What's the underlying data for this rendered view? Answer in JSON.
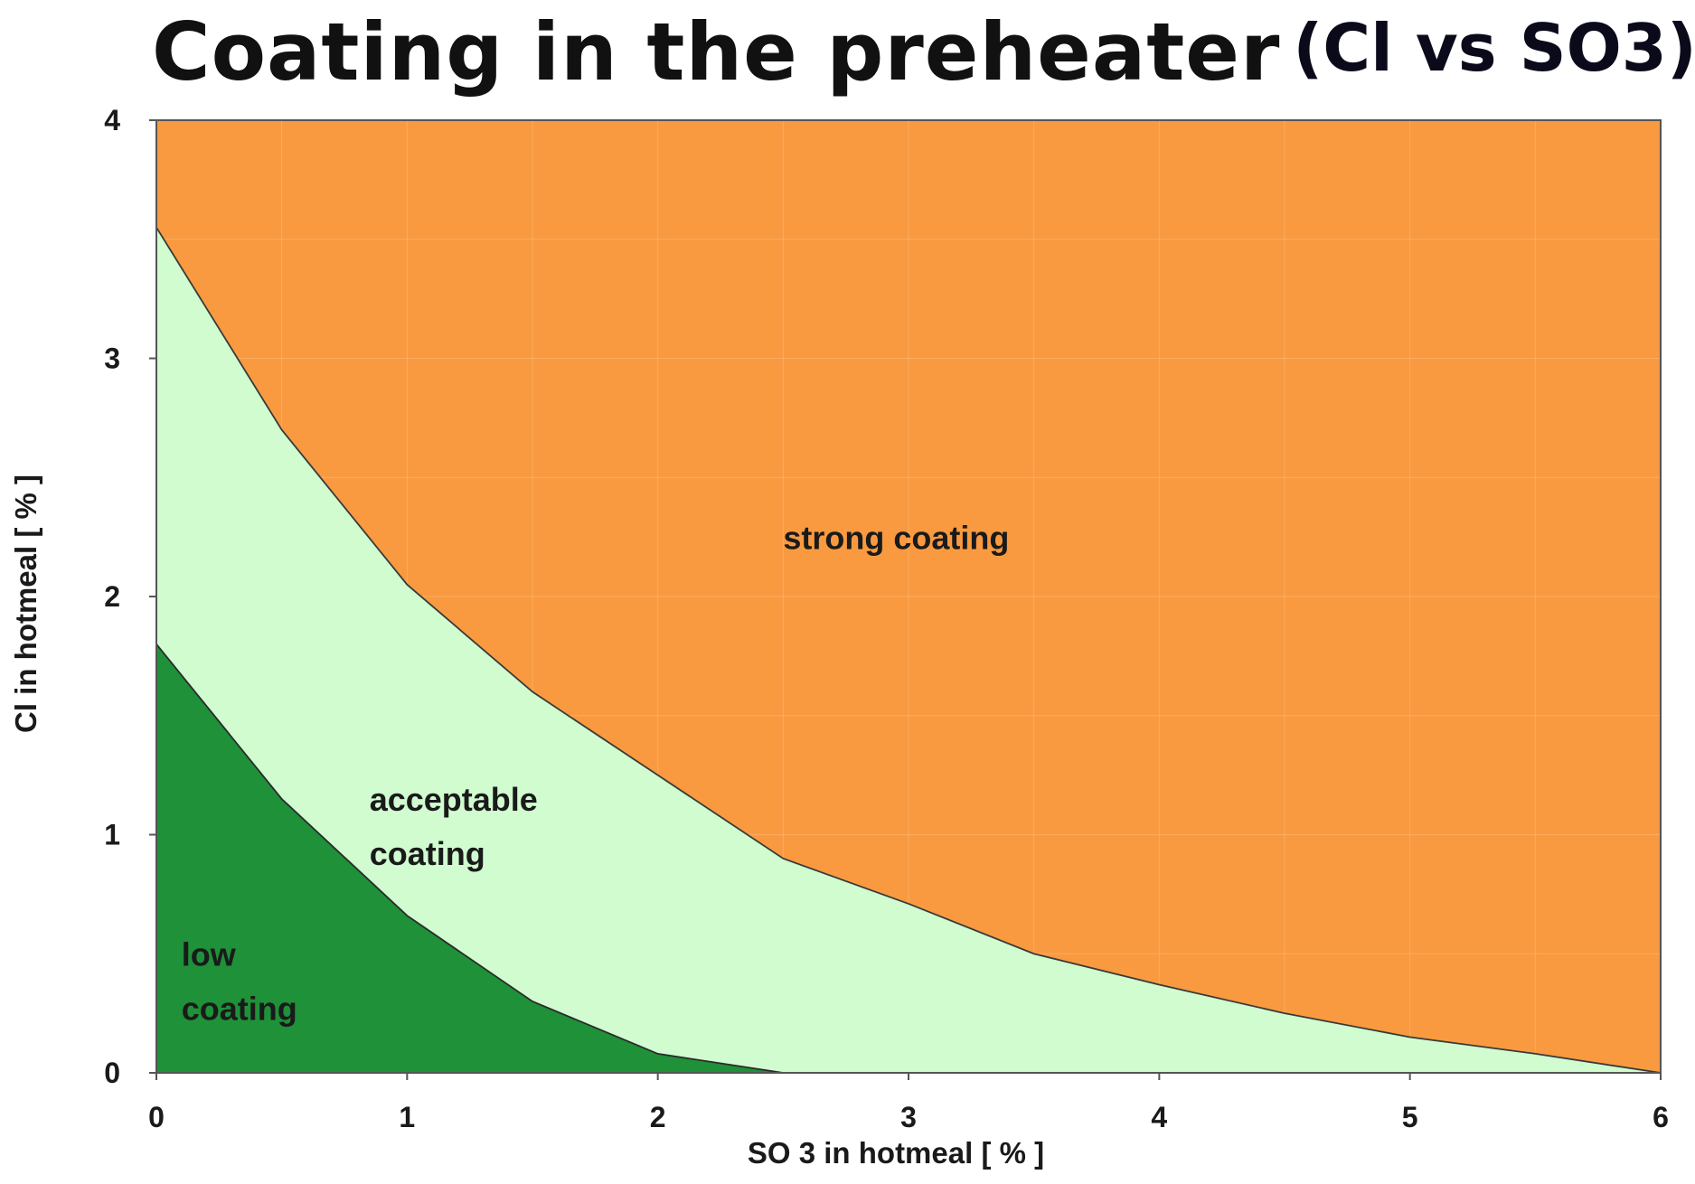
{
  "chart_data": {
    "type": "area",
    "title": "Coating in the preheater",
    "subtitle": "(Cl vs SO3)",
    "xlabel": "SO 3 in hotmeal [ % ]",
    "ylabel": "Cl in hotmeal [ % ]",
    "xlim": [
      0,
      6
    ],
    "ylim": [
      0,
      4
    ],
    "x_ticks": [
      "0",
      "1",
      "2",
      "3",
      "4",
      "5",
      "6"
    ],
    "y_ticks": [
      "0",
      "1",
      "2",
      "3",
      "4"
    ],
    "grid": true,
    "legend": "none",
    "series": [
      {
        "name": "low coating",
        "label_lines": [
          "low",
          "coating"
        ],
        "color": "#1e9139",
        "x": [
          0,
          0.5,
          1.0,
          1.5,
          2.0,
          2.5
        ],
        "y": [
          1.8,
          1.15,
          0.66,
          0.3,
          0.08,
          0.0
        ]
      },
      {
        "name": "acceptable coating",
        "label_lines": [
          "acceptable",
          "coating"
        ],
        "color": "#d0fcd0",
        "x": [
          0,
          0.5,
          1.0,
          1.5,
          2.0,
          2.5,
          3.0,
          3.5,
          4.0,
          4.5,
          5.0,
          5.5,
          6.0
        ],
        "y": [
          3.55,
          2.7,
          2.05,
          1.6,
          1.25,
          0.9,
          0.71,
          0.5,
          0.37,
          0.25,
          0.15,
          0.08,
          0.0
        ]
      },
      {
        "name": "strong coating",
        "label_lines": [
          "strong coating"
        ],
        "color": "#f99a40",
        "x": [
          0,
          6
        ],
        "y": [
          4,
          4
        ]
      }
    ],
    "label_positions": [
      {
        "series": "low coating",
        "x": 0.1,
        "y": 0.45
      },
      {
        "series": "acceptable coating",
        "x": 0.85,
        "y": 1.1
      },
      {
        "series": "strong coating",
        "x": 2.5,
        "y": 2.2
      }
    ]
  }
}
